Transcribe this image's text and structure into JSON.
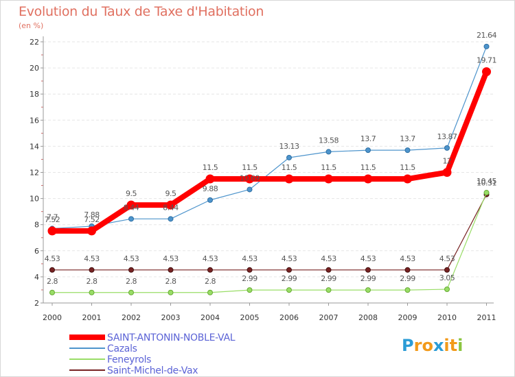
{
  "title": "Evolution du Taux de Taxe d'Habitation",
  "subtitle": "(en %)",
  "logo": {
    "text": "Proxiti",
    "letters": [
      "P",
      "r",
      "o",
      "x",
      "i",
      "t",
      "i"
    ],
    "colors": [
      "#2b9cd6",
      "#f29a1a",
      "#f29a1a",
      "#2b9cd6",
      "#f29a1a",
      "#f29a1a",
      "#8bc53f"
    ]
  },
  "chart_data": {
    "type": "line",
    "title": "Evolution du Taux de Taxe d'Habitation",
    "ylabel": "(en %)",
    "xlabel": "",
    "x": [
      "2000",
      "2001",
      "2002",
      "2003",
      "2004",
      "2005",
      "2006",
      "2007",
      "2008",
      "2009",
      "2010",
      "2011"
    ],
    "ylim": [
      2,
      22
    ],
    "yticks": [
      "2",
      "4",
      "6",
      "8",
      "10",
      "12",
      "14",
      "16",
      "18",
      "20",
      "22"
    ],
    "grid": "horizontal dashed",
    "legend_position": "bottom-left",
    "series": [
      {
        "name": "SAINT-ANTONIN-NOBLE-VAL",
        "color": "#ff0000",
        "values": [
          7.52,
          7.52,
          9.5,
          9.5,
          11.5,
          11.5,
          11.5,
          11.5,
          11.5,
          11.5,
          12,
          19.71
        ],
        "labels": [
          "7.52",
          "7.52",
          "9.5",
          "9.5",
          "11.5",
          "11.5",
          "11.5",
          "11.5",
          "11.5",
          "11.5",
          "12",
          "19.71"
        ]
      },
      {
        "name": "Cazals",
        "color": "#4d94cc",
        "values": [
          7.7,
          7.88,
          8.44,
          8.44,
          9.88,
          10.69,
          13.13,
          13.58,
          13.7,
          13.7,
          13.87,
          21.64
        ],
        "labels": [
          "7.7",
          "7.88",
          "8.44",
          "8.44",
          "9.88",
          "10.69",
          "13.13",
          "13.58",
          "13.7",
          "13.7",
          "13.87",
          "21.64"
        ]
      },
      {
        "name": "Feneyrols",
        "color": "#99dd66",
        "values": [
          2.8,
          2.8,
          2.8,
          2.8,
          2.8,
          2.99,
          2.99,
          2.99,
          2.99,
          2.99,
          3.05,
          10.45
        ],
        "labels": [
          "2.8",
          "2.8",
          "2.8",
          "2.8",
          "2.8",
          "2.99",
          "2.99",
          "2.99",
          "2.99",
          "2.99",
          "3.05",
          "10.45"
        ]
      },
      {
        "name": "Saint-Michel-de-Vax",
        "color": "#772222",
        "values": [
          4.53,
          4.53,
          4.53,
          4.53,
          4.53,
          4.53,
          4.53,
          4.53,
          4.53,
          4.53,
          4.53,
          10.31
        ],
        "labels": [
          "4.53",
          "4.53",
          "4.53",
          "4.53",
          "4.53",
          "4.53",
          "4.53",
          "4.53",
          "4.53",
          "4.53",
          "4.53",
          "10.31"
        ]
      }
    ]
  },
  "legend": [
    {
      "label": "SAINT-ANTONIN-NOBLE-VAL",
      "color": "#ff0000"
    },
    {
      "label": "Cazals",
      "color": "#4d94cc"
    },
    {
      "label": "Feneyrols",
      "color": "#99dd66"
    },
    {
      "label": "Saint-Michel-de-Vax",
      "color": "#772222"
    }
  ]
}
